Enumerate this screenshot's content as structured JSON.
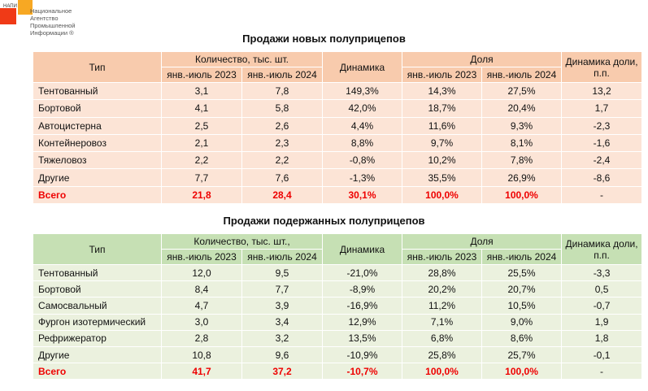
{
  "logo": {
    "abbr": "НАПИ",
    "name": "Национальное Агентство Промышленной Информации ®"
  },
  "tables": [
    {
      "title": "Продажи новых полуприцепов",
      "headers": {
        "type": "Тип",
        "qty": "Количество, тыс. шт.",
        "dyn": "Динамика",
        "share": "Доля",
        "share_dyn": "Динамика доли, п.п.",
        "p1": "янв.-июль 2023",
        "p2": "янв.-июль 2024"
      },
      "rows": [
        [
          "Тентованный",
          "3,1",
          "7,8",
          "149,3%",
          "14,3%",
          "27,5%",
          "13,2"
        ],
        [
          "Бортовой",
          "4,1",
          "5,8",
          "42,0%",
          "18,7%",
          "20,4%",
          "1,7"
        ],
        [
          "Автоцистерна",
          "2,5",
          "2,6",
          "4,4%",
          "11,6%",
          "9,3%",
          "-2,3"
        ],
        [
          "Контейнеровоз",
          "2,1",
          "2,3",
          "8,8%",
          "9,7%",
          "8,1%",
          "-1,6"
        ],
        [
          "Тяжеловоз",
          "2,2",
          "2,2",
          "-0,8%",
          "10,2%",
          "7,8%",
          "-2,4"
        ],
        [
          "Другие",
          "7,7",
          "7,6",
          "-1,3%",
          "35,5%",
          "26,9%",
          "-8,6"
        ]
      ],
      "total": [
        "Всего",
        "21,8",
        "28,4",
        "30,1%",
        "100,0%",
        "100,0%",
        "-"
      ]
    },
    {
      "title": "Продажи подержанных полуприцепов",
      "headers": {
        "type": "Тип",
        "qty": "Количество, тыс. шт.,",
        "dyn": "Динамика",
        "share": "Доля",
        "share_dyn": "Динамика доли, п.п.",
        "p1": "янв.-июль 2023",
        "p2": "янв.-июль 2024"
      },
      "rows": [
        [
          "Тентованный",
          "12,0",
          "9,5",
          "-21,0%",
          "28,8%",
          "25,5%",
          "-3,3"
        ],
        [
          "Бортовой",
          "8,4",
          "7,7",
          "-8,9%",
          "20,2%",
          "20,7%",
          "0,5"
        ],
        [
          "Самосвальный",
          "4,7",
          "3,9",
          "-16,9%",
          "11,2%",
          "10,5%",
          "-0,7"
        ],
        [
          "Фургон изотермический",
          "3,0",
          "3,4",
          "12,9%",
          "7,1%",
          "9,0%",
          "1,9"
        ],
        [
          "Рефрижератор",
          "2,8",
          "3,2",
          "13,5%",
          "6,8%",
          "8,6%",
          "1,8"
        ],
        [
          "Другие",
          "10,8",
          "9,6",
          "-10,9%",
          "25,8%",
          "25,7%",
          "-0,1"
        ]
      ],
      "total": [
        "Всего",
        "41,7",
        "37,2",
        "-10,7%",
        "100,0%",
        "100,0%",
        "-"
      ]
    }
  ]
}
